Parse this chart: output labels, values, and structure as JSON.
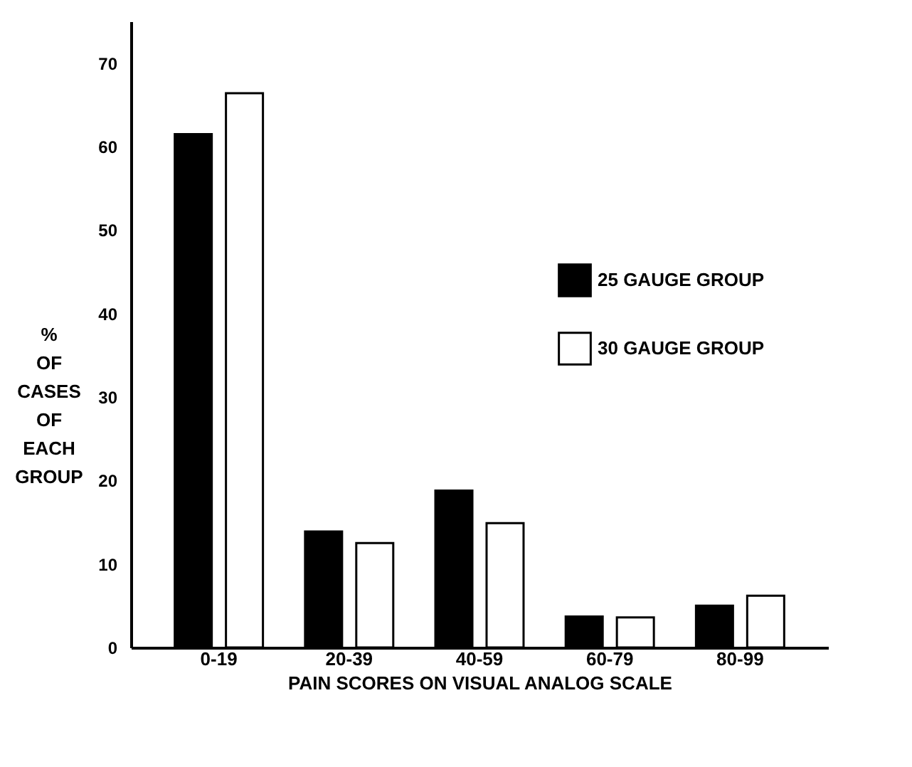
{
  "chart_data": {
    "type": "bar",
    "xlabel": "PAIN SCORES ON VISUAL ANALOG SCALE",
    "ylabel": "% OF CASES OF EACH GROUP",
    "categories": [
      "0-19",
      "20-39",
      "40-59",
      "60-79",
      "80-99"
    ],
    "series": [
      {
        "name": "25 GAUGE GROUP",
        "color": "#000000",
        "values": [
          61.5,
          13.9,
          18.8,
          3.7,
          5.0
        ]
      },
      {
        "name": "30 GAUGE GROUP",
        "color": "#ffffff",
        "values": [
          66.4,
          12.5,
          14.9,
          3.6,
          6.2
        ]
      }
    ],
    "ylim": [
      0,
      75
    ],
    "yticks": [
      0,
      10,
      20,
      30,
      40,
      50,
      60,
      70
    ],
    "grid": false,
    "legend": "right"
  }
}
